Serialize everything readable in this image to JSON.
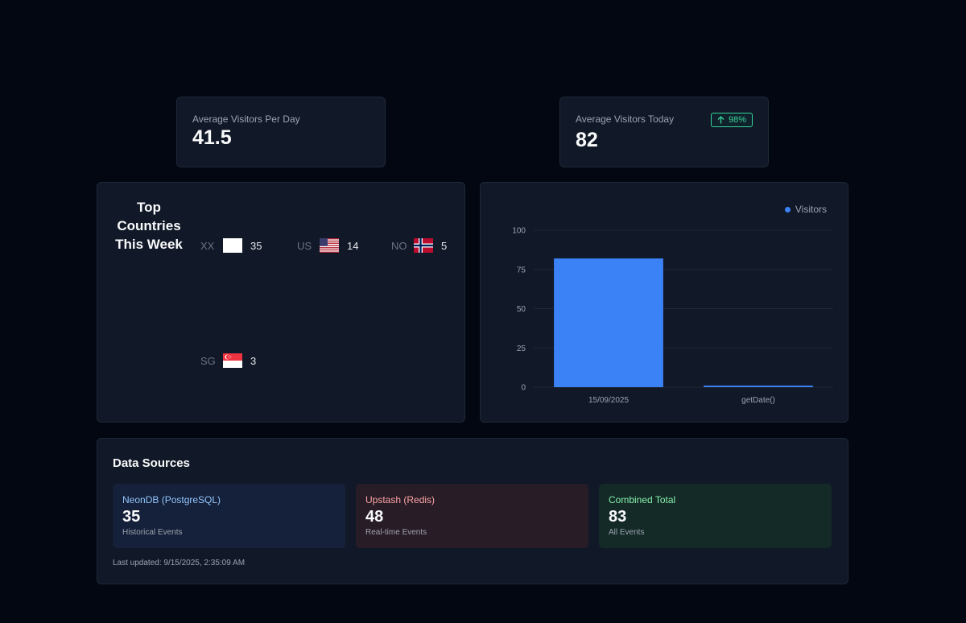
{
  "stats": {
    "avg_per_day": {
      "label": "Average Visitors Per Day",
      "value": "41.5"
    },
    "avg_today": {
      "label": "Average Visitors Today",
      "value": "82",
      "badge": "98%",
      "badge_icon": "arrow-up-icon"
    }
  },
  "countries": {
    "title": "Top Countries This Week",
    "items": [
      {
        "code": "XX",
        "count": "35",
        "flag": "blank"
      },
      {
        "code": "US",
        "count": "14",
        "flag": "us"
      },
      {
        "code": "NO",
        "count": "5",
        "flag": "no"
      },
      {
        "code": "SG",
        "count": "3",
        "flag": "sg"
      }
    ]
  },
  "chart_data": {
    "type": "bar",
    "categories": [
      "15/09/2025",
      "getDate()"
    ],
    "series": [
      {
        "name": "Visitors",
        "values": [
          82,
          1
        ],
        "color": "#3b82f6"
      }
    ],
    "ylim": [
      0,
      100
    ],
    "yticks": [
      0,
      25,
      50,
      75,
      100
    ],
    "legend": "top-right",
    "grid": true
  },
  "data_sources": {
    "title": "Data Sources",
    "items": [
      {
        "name": "NeonDB (PostgreSQL)",
        "value": "35",
        "sub": "Historical Events"
      },
      {
        "name": "Upstash (Redis)",
        "value": "48",
        "sub": "Real-time Events"
      },
      {
        "name": "Combined Total",
        "value": "83",
        "sub": "All Events"
      }
    ],
    "updated": "Last updated: 9/15/2025, 2:35:09 AM"
  },
  "colors": {
    "background": "#030712",
    "card": "#111827",
    "accent": "#3b82f6",
    "positive": "#34d399",
    "neon": "#93c5fd",
    "upstash": "#fca5a5",
    "combined": "#86efac"
  }
}
